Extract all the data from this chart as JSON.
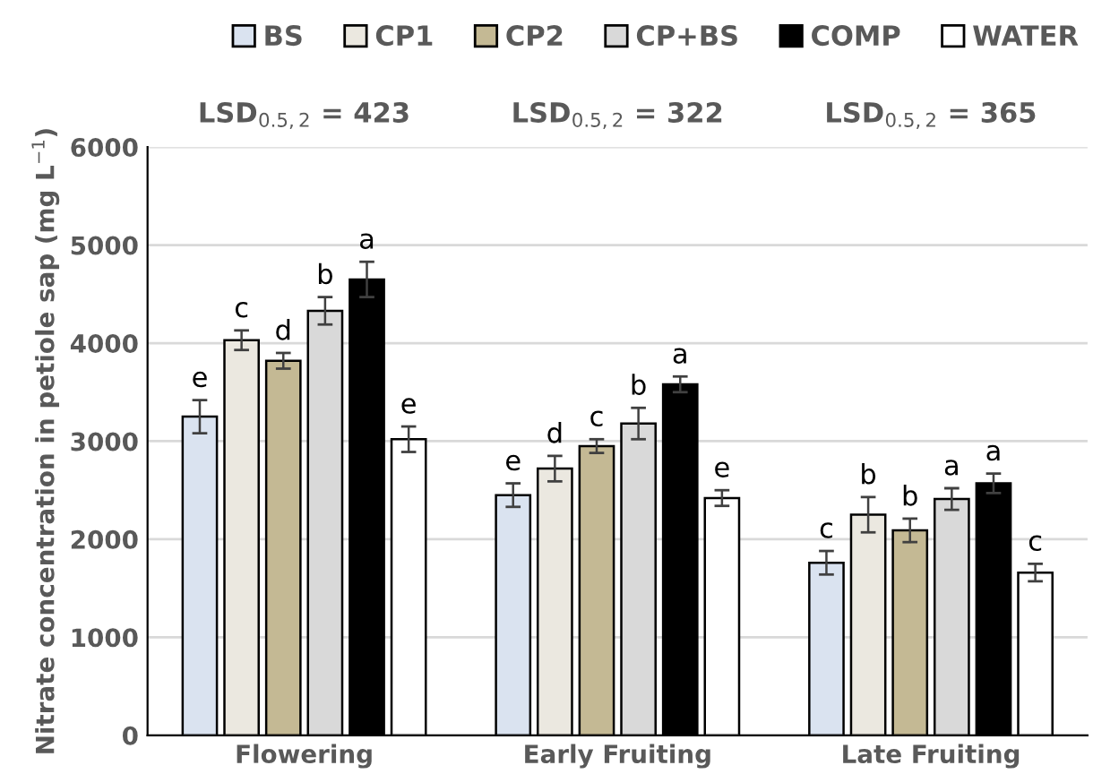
{
  "chart_data": {
    "type": "bar",
    "categories": [
      "Flowering",
      "Early Fruiting",
      "Late Fruiting"
    ],
    "ylabel": "Nitrate concentration in petiole sap (mg L$^{−1}$)",
    "series": [
      {
        "name": "BS",
        "color": "#dae3f0",
        "values": [
          3250,
          2450,
          1760
        ],
        "errors": [
          170,
          120,
          120
        ],
        "value_labels": [
          "e",
          "e",
          "c"
        ]
      },
      {
        "name": "CP1",
        "color": "#ebe8e0",
        "values": [
          4030,
          2720,
          2250
        ],
        "errors": [
          100,
          130,
          180
        ],
        "value_labels": [
          "c",
          "d",
          "b"
        ]
      },
      {
        "name": "CP2",
        "color": "#c4b994",
        "values": [
          3820,
          2950,
          2090
        ],
        "errors": [
          80,
          70,
          120
        ],
        "value_labels": [
          "d",
          "c",
          "b"
        ]
      },
      {
        "name": "CP+BS",
        "color": "#d9d9d9",
        "values": [
          4330,
          3180,
          2410
        ],
        "errors": [
          140,
          160,
          110
        ],
        "value_labels": [
          "b",
          "b",
          "a"
        ]
      },
      {
        "name": "COMP",
        "color": "#000000",
        "values": [
          4650,
          3580,
          2570
        ],
        "errors": [
          180,
          80,
          100
        ],
        "value_labels": [
          "a",
          "a",
          "a"
        ]
      },
      {
        "name": "WATER",
        "color": "#ffffff",
        "values": [
          3020,
          2420,
          1660
        ],
        "errors": [
          130,
          80,
          90
        ],
        "value_labels": [
          "e",
          "e",
          "c"
        ]
      }
    ],
    "annotations": [
      "LSD$_{0.5,2}$ = 423",
      "LSD$_{0.5,2}$ = 322",
      "LSD$_{0.5,2}$ = 365"
    ],
    "ylim": [
      0,
      6000
    ],
    "yticks": [
      0,
      1000,
      2000,
      3000,
      4000,
      5000,
      6000
    ],
    "grid": "y",
    "legend": "top"
  }
}
